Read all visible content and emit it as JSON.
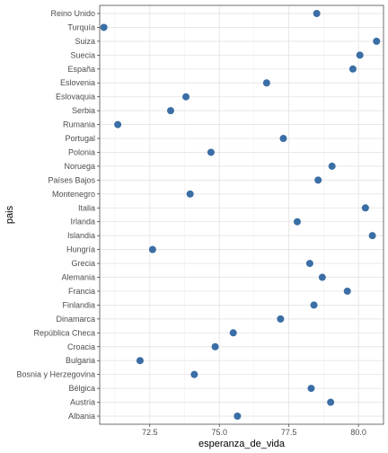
{
  "chart_data": {
    "type": "scatter",
    "xlabel": "esperanza_de_vida",
    "ylabel": "pais",
    "xlim": [
      70.7,
      80.9
    ],
    "x_ticks": [
      72.5,
      75.0,
      77.5,
      80.0
    ],
    "x_tick_labels": [
      "72.5",
      "75.0",
      "77.5",
      "80.0"
    ],
    "grid": true,
    "point_color": "#3a6ea5",
    "categories": [
      "Albania",
      "Austria",
      "Bélgica",
      "Bosnia y Herzegovina",
      "Bulgaria",
      "Croacia",
      "República Checa",
      "Dinamarca",
      "Finlandia",
      "Francia",
      "Alemania",
      "Grecia",
      "Hungría",
      "Islandia",
      "Irlanda",
      "Italia",
      "Montenegro",
      "Países Bajos",
      "Noruega",
      "Polonia",
      "Portugal",
      "Rumania",
      "Serbia",
      "Eslovaquia",
      "Eslovenia",
      "España",
      "Suecia",
      "Suiza",
      "Turquía",
      "Reino Unido"
    ],
    "values": [
      75.65,
      79.0,
      78.3,
      74.1,
      72.15,
      74.85,
      75.5,
      77.2,
      78.4,
      79.6,
      78.7,
      78.25,
      72.6,
      80.5,
      77.8,
      80.25,
      73.95,
      78.55,
      79.05,
      74.7,
      77.3,
      71.35,
      73.25,
      73.8,
      76.7,
      79.8,
      80.05,
      80.65,
      70.85,
      78.5
    ]
  }
}
